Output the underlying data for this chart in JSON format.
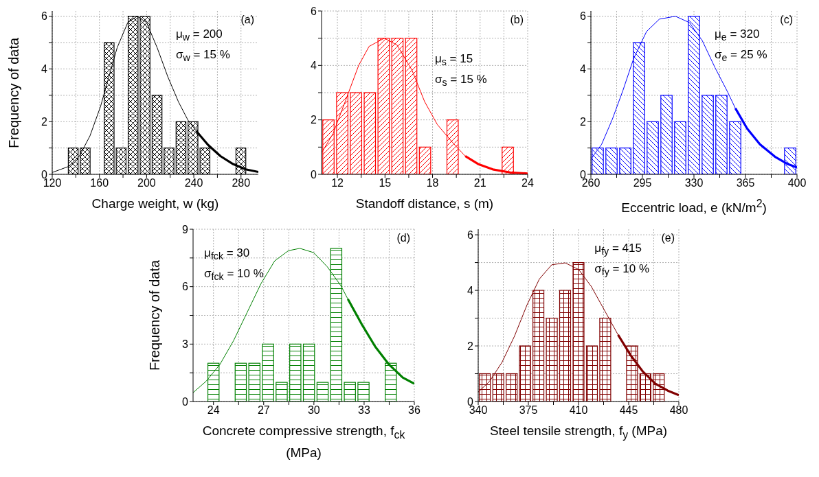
{
  "chart_data": [
    {
      "type": "histogram",
      "xlabel": "Charge weight, w (kg)",
      "ylabel": "Frequency of data",
      "color": "#000000",
      "grid": true,
      "bins": [
        132.7,
        142.9,
        153.0,
        163.2,
        173.3,
        183.5,
        193.6,
        203.8,
        213.9,
        224.1,
        234.2,
        244.4,
        254.5,
        264.7,
        274.8,
        285.0
      ],
      "values": [
        1,
        1,
        0,
        5,
        1,
        6,
        6,
        3,
        1,
        2,
        2,
        1,
        0,
        0,
        1
      ],
      "series": [
        {
          "type": "line",
          "color": "#000000",
          "x": [
            120,
            134,
            143,
            152,
            161,
            168,
            175,
            184,
            192,
            200,
            209,
            218,
            227,
            235,
            242
          ],
          "values": [
            0.07,
            0.3,
            0.69,
            1.46,
            2.58,
            3.7,
            4.8,
            5.76,
            6.0,
            5.76,
            4.8,
            3.7,
            2.75,
            2.06,
            1.65
          ]
        },
        {
          "type": "line",
          "color": "#000000",
          "x": [
            242,
            252,
            262.6,
            273.3,
            284,
            294.7
          ],
          "values": [
            1.65,
            1.12,
            0.69,
            0.39,
            0.19,
            0.09
          ]
        }
      ],
      "xlim": [
        120,
        294.7
      ],
      "xticks": [
        120,
        {
          "value": 140,
          "label": null
        },
        160,
        {
          "value": 180,
          "label": null
        },
        200,
        {
          "value": 220,
          "label": null
        },
        240,
        {
          "value": 260,
          "label": null
        },
        280
      ],
      "ylim": [
        0,
        6.2
      ],
      "yticks": [
        0,
        {
          "value": 1,
          "label": null
        },
        2,
        {
          "value": 3,
          "label": null
        },
        4,
        {
          "value": 5,
          "label": null
        },
        6
      ],
      "annotations": [
        "(a)",
        "μ$_{w}$ = 200",
        "σ$_{w}$ = 15 %"
      ]
    },
    {
      "type": "histogram",
      "xlabel": "Standoff distance, s (m)",
      "color": "#ff0000",
      "grid": true,
      "bins": [
        11.0,
        11.87,
        12.74,
        13.61,
        14.48,
        15.35,
        16.22,
        17.09,
        17.96,
        18.83,
        19.7,
        20.57,
        21.44,
        22.31,
        23.18
      ],
      "values": [
        2,
        3,
        3,
        3,
        5,
        5,
        5,
        1,
        0,
        2,
        0,
        0,
        0,
        1
      ],
      "series": [
        {
          "type": "line",
          "color": "#ff0000",
          "x": [
            11.03,
            11.73,
            12.54,
            13.34,
            14.0,
            14.96,
            15.76,
            16.7,
            17.5,
            18.3,
            19.26,
            20.06
          ],
          "values": [
            0.82,
            1.5,
            2.75,
            4.0,
            4.7,
            5.0,
            4.75,
            3.83,
            2.67,
            1.83,
            1.17,
            0.67
          ]
        },
        {
          "type": "line",
          "color": "#ff0000",
          "x": [
            20.06,
            20.87,
            21.8,
            22.9,
            24
          ],
          "values": [
            0.67,
            0.38,
            0.18,
            0.07,
            0.03
          ]
        }
      ],
      "xlim": [
        11,
        24
      ],
      "xticks": [
        12,
        {
          "value": 13.5,
          "label": null
        },
        15,
        {
          "value": 16.5,
          "label": null
        },
        18,
        {
          "value": 19.5,
          "label": null
        },
        21,
        {
          "value": 22.5,
          "label": null
        },
        24
      ],
      "ylim": [
        0,
        6
      ],
      "yticks": [
        0,
        {
          "value": 1,
          "label": null
        },
        2,
        {
          "value": 3,
          "label": null
        },
        4,
        {
          "value": 5,
          "label": null
        },
        6
      ],
      "annotations": [
        "(b)",
        "μ$_{s}$ = 15",
        "σ$_{s}$ = 15 %"
      ]
    },
    {
      "type": "histogram",
      "xlabel": "Eccentric load, e (kN/m$^{2}$)",
      "color": "#0000ff",
      "grid": true,
      "bins": [
        260,
        269.3,
        278.7,
        288,
        297.3,
        306.7,
        316,
        325.3,
        334.7,
        344,
        353.3,
        362.7,
        372,
        381.3,
        390.7,
        400
      ],
      "values": [
        1,
        1,
        1,
        5,
        2,
        3,
        2,
        6,
        3,
        3,
        2,
        0,
        0,
        0,
        1
      ],
      "series": [
        {
          "type": "line",
          "color": "#0000ff",
          "x": [
            260,
            267.3,
            274.5,
            281.8,
            289,
            297.8,
            306.5,
            317.4,
            326.9,
            335.6,
            344.3,
            353,
            358.1
          ],
          "values": [
            0.58,
            1.14,
            2.08,
            3.19,
            4.39,
            5.42,
            5.89,
            6.0,
            5.76,
            5.08,
            4.05,
            3.11,
            2.51
          ]
        },
        {
          "type": "line",
          "color": "#0000ff",
          "x": [
            358.1,
            366.1,
            374.8,
            385,
            393.7,
            400
          ],
          "values": [
            2.51,
            1.74,
            1.14,
            0.67,
            0.39,
            0.26
          ]
        }
      ],
      "xlim": [
        260,
        400
      ],
      "xticks": [
        260,
        {
          "value": 277.5,
          "label": null
        },
        295,
        {
          "value": 312.5,
          "label": null
        },
        330,
        {
          "value": 347.5,
          "label": null
        },
        365,
        {
          "value": 382.5,
          "label": null
        },
        400
      ],
      "ylim": [
        0,
        6.2
      ],
      "yticks": [
        0,
        {
          "value": 1,
          "label": null
        },
        2,
        {
          "value": 3,
          "label": null
        },
        4,
        {
          "value": 5,
          "label": null
        },
        6
      ],
      "annotations": [
        "(c)",
        "μ$_{e}$ = 320",
        "σ$_{e}$ = 25 %"
      ]
    },
    {
      "type": "histogram",
      "xlabel": "Concrete compressive strength, f$_{ck}$ (MPa)",
      "ylabel": "Frequency of data",
      "color": "#008000",
      "grid": true,
      "bins": [
        23.59,
        24.41,
        25.22,
        26.04,
        26.85,
        27.67,
        28.48,
        29.3,
        30.11,
        30.93,
        31.74,
        32.56,
        33.37,
        34.19,
        35.0
      ],
      "values": [
        2,
        0,
        2,
        2,
        3,
        1,
        3,
        3,
        1,
        8,
        1,
        1,
        0,
        2
      ],
      "series": [
        {
          "type": "line",
          "color": "#008000",
          "x": [
            22.78,
            23.56,
            24.38,
            25.2,
            26.02,
            26.84,
            27.66,
            28.48,
            29.16,
            29.98,
            30.8,
            31.62,
            32.03
          ],
          "values": [
            0.46,
            1.06,
            1.93,
            3.18,
            4.67,
            6.16,
            7.35,
            7.88,
            8.0,
            7.78,
            7.04,
            6.04,
            5.35
          ]
        },
        {
          "type": "line",
          "color": "#008000",
          "x": [
            32.03,
            32.85,
            33.67,
            34.49,
            35.31,
            36
          ],
          "values": [
            5.35,
            4.05,
            2.86,
            1.93,
            1.25,
            0.93
          ]
        }
      ],
      "xlim": [
        22.78,
        36
      ],
      "xticks": [
        24,
        {
          "value": 25.5,
          "label": null
        },
        27,
        {
          "value": 28.5,
          "label": null
        },
        30,
        {
          "value": 31.5,
          "label": null
        },
        33,
        {
          "value": 34.5,
          "label": null
        },
        36
      ],
      "ylim": [
        0,
        9
      ],
      "yticks": [
        0,
        {
          "value": 1.5,
          "label": null
        },
        3,
        {
          "value": 4.5,
          "label": null
        },
        6,
        {
          "value": 7.5,
          "label": null
        },
        9
      ],
      "annotations": [
        "(d)",
        "μ$_{fck}$ = 30",
        "σ$_{fck}$ = 10 %"
      ]
    },
    {
      "type": "histogram",
      "xlabel": "Steel tensile strength, f$_{y}$ (MPa)",
      "color": "#800000",
      "grid": true,
      "bins": [
        340,
        349.3,
        358.7,
        368,
        377.3,
        386.7,
        396,
        405.3,
        414.7,
        424,
        433.3,
        442.7,
        452,
        461.3,
        470.7,
        480
      ],
      "values": [
        1,
        1,
        1,
        2,
        4,
        3,
        4,
        5,
        2,
        3,
        0,
        2,
        1,
        1,
        0
      ],
      "series": [
        {
          "type": "line",
          "color": "#800000",
          "x": [
            340,
            348,
            356.6,
            365.3,
            374,
            382.7,
            391.3,
            400.7,
            410.1,
            418.8,
            428.9,
            437.6
          ],
          "values": [
            0.34,
            0.73,
            1.41,
            2.35,
            3.47,
            4.41,
            4.92,
            4.99,
            4.75,
            4.15,
            3.21,
            2.4
          ]
        },
        {
          "type": "line",
          "color": "#800000",
          "x": [
            437.6,
            446.3,
            455,
            463.7,
            472.3,
            480
          ],
          "values": [
            2.4,
            1.67,
            1.07,
            0.64,
            0.39,
            0.23
          ]
        }
      ],
      "xlim": [
        340,
        480
      ],
      "xticks": [
        340,
        {
          "value": 357.5,
          "label": null
        },
        375,
        {
          "value": 392.5,
          "label": null
        },
        410,
        {
          "value": 427.5,
          "label": null
        },
        445,
        {
          "value": 462.5,
          "label": null
        },
        480
      ],
      "ylim": [
        0,
        6.2
      ],
      "yticks": [
        0,
        {
          "value": 1,
          "label": null
        },
        2,
        {
          "value": 3,
          "label": null
        },
        4,
        {
          "value": 5,
          "label": null
        },
        6
      ],
      "annotations": [
        "(e)",
        "μ$_{fy}$ = 415",
        "σ$_{fy}$ = 10 %"
      ]
    }
  ]
}
